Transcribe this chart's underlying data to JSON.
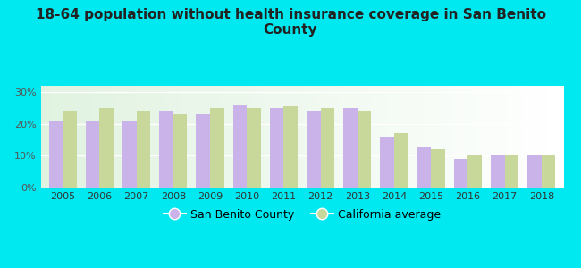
{
  "title": "18-64 population without health insurance coverage in San Benito\nCounty",
  "years": [
    2005,
    2006,
    2007,
    2008,
    2009,
    2010,
    2011,
    2012,
    2013,
    2014,
    2015,
    2016,
    2017,
    2018
  ],
  "san_benito": [
    21,
    21,
    21,
    24,
    23,
    26,
    25,
    24,
    25,
    16,
    13,
    9,
    10.5,
    10.5
  ],
  "california": [
    24,
    25,
    24,
    23,
    25,
    25,
    25.5,
    25,
    24,
    17,
    12,
    10.5,
    10,
    10.5
  ],
  "san_benito_color": "#c9b3e8",
  "california_color": "#c8d89a",
  "background_outer": "#00e8f0",
  "background_plot_left": "#e8f5e9",
  "background_plot_right": "#f5fafa",
  "yticks": [
    0,
    10,
    20,
    30
  ],
  "ylim": [
    0,
    32
  ],
  "legend_san_benito": "San Benito County",
  "legend_california": "California average",
  "bar_width": 0.38,
  "title_fontsize": 11,
  "tick_fontsize": 8,
  "legend_fontsize": 9,
  "title_color": "#222222"
}
